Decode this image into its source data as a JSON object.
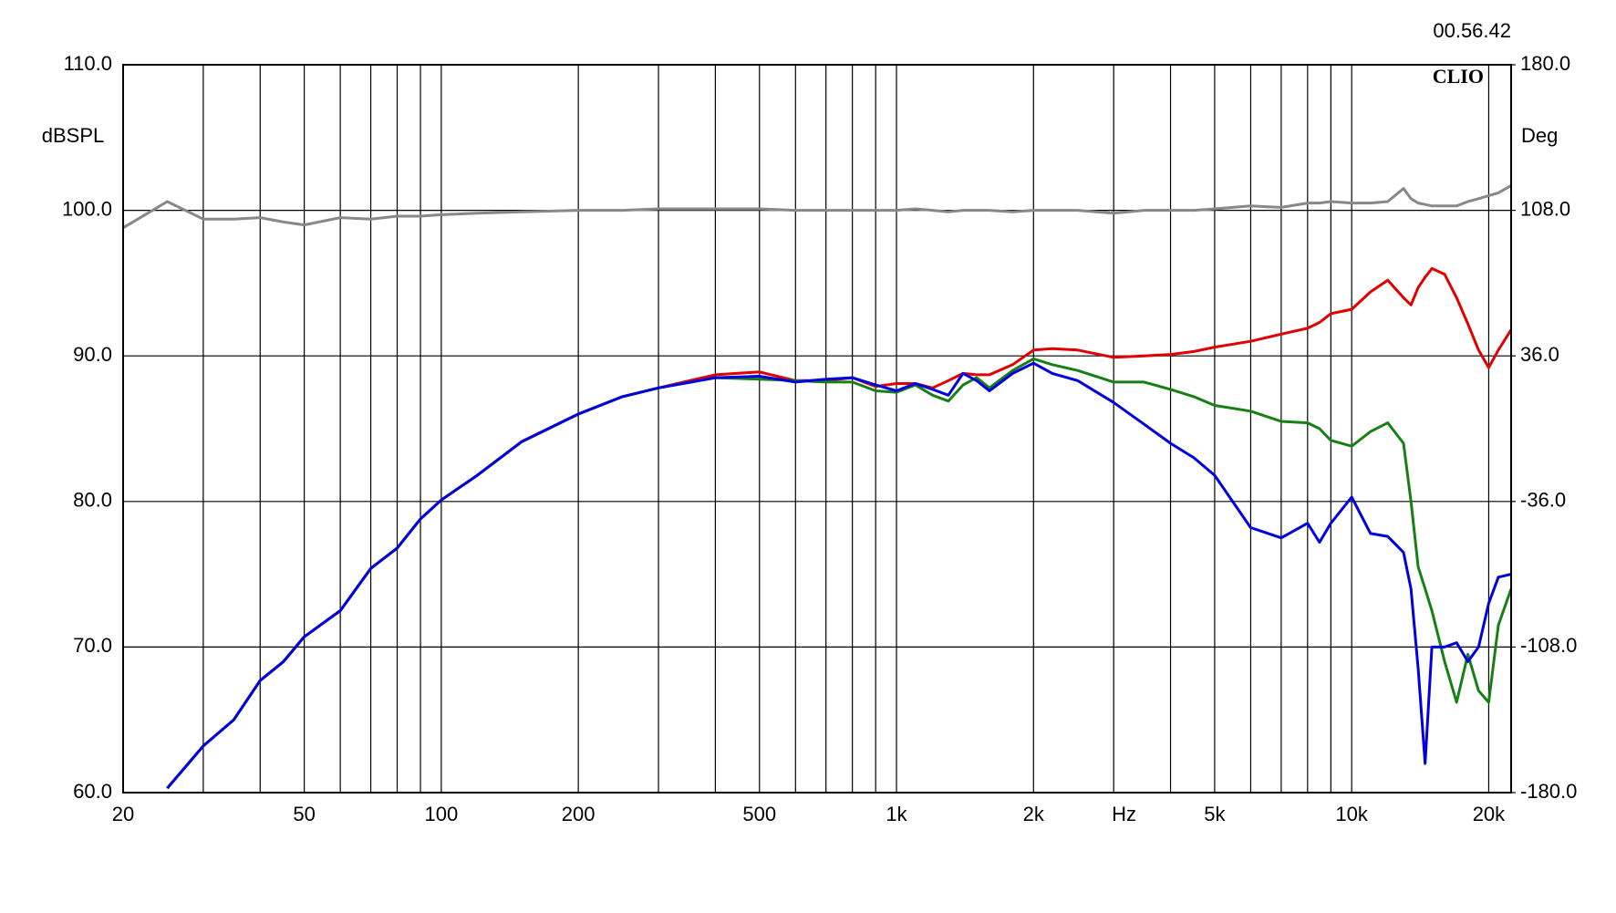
{
  "chart_data": {
    "type": "line",
    "timestamp": "00.56.42",
    "brand": "CLIO",
    "xlabel": "Hz",
    "ylabel": "dBSPL",
    "y2label": "Deg",
    "xscale": "log",
    "grid": true,
    "xlim": [
      20,
      22400
    ],
    "ylim": [
      60,
      110
    ],
    "y2lim": [
      -180,
      180
    ],
    "xticks": [
      20,
      50,
      100,
      200,
      500,
      {
        "value": 1000,
        "label": "1k"
      },
      {
        "value": 2000,
        "label": "2k"
      },
      {
        "value": 5000,
        "label": "5k"
      },
      {
        "value": 10000,
        "label": "10k"
      },
      {
        "value": 20000,
        "label": "20k"
      }
    ],
    "xminor": [
      30,
      40,
      60,
      70,
      80,
      90,
      300,
      400,
      600,
      700,
      800,
      900,
      3000,
      4000,
      6000,
      7000,
      8000,
      9000
    ],
    "yticks": [
      {
        "value": 60,
        "label": "60.0"
      },
      {
        "value": 70,
        "label": "70.0"
      },
      {
        "value": 80,
        "label": "80.0"
      },
      {
        "value": 90,
        "label": "90.0"
      },
      {
        "value": 100,
        "label": "100.0"
      },
      {
        "value": 110,
        "label": "110.0"
      }
    ],
    "y2ticks": [
      {
        "value": -180,
        "label": "-180.0"
      },
      {
        "value": -108,
        "label": "-108.0"
      },
      {
        "value": -36,
        "label": "-36.0"
      },
      {
        "value": 36,
        "label": "36.0"
      },
      {
        "value": 108,
        "label": "108.0"
      },
      {
        "value": 180,
        "label": "180.0"
      }
    ],
    "x": [
      20,
      25,
      30,
      35,
      40,
      45,
      50,
      60,
      70,
      80,
      90,
      100,
      120,
      150,
      200,
      250,
      300,
      400,
      500,
      600,
      700,
      800,
      900,
      1000,
      1100,
      1200,
      1300,
      1400,
      1500,
      1600,
      1800,
      2000,
      2200,
      2500,
      3000,
      3500,
      4000,
      4500,
      5000,
      6000,
      7000,
      8000,
      8500,
      9000,
      10000,
      11000,
      12000,
      13000,
      13500,
      14000,
      14500,
      15000,
      16000,
      17000,
      18000,
      19000,
      20000,
      21000,
      22400
    ],
    "series": [
      {
        "color": "#888888",
        "values": [
          98.8,
          100.6,
          99.4,
          99.4,
          99.5,
          99.2,
          99.0,
          99.5,
          99.4,
          99.6,
          99.6,
          99.7,
          99.8,
          99.9,
          100.0,
          100.0,
          100.1,
          100.1,
          100.1,
          100.0,
          100.0,
          100.0,
          100.0,
          100.0,
          100.1,
          100.0,
          99.9,
          100.0,
          100.0,
          100.0,
          99.9,
          100.0,
          100.0,
          100.0,
          99.8,
          100.0,
          100.0,
          100.0,
          100.1,
          100.3,
          100.2,
          100.5,
          100.5,
          100.6,
          100.5,
          100.5,
          100.6,
          101.5,
          100.8,
          100.5,
          100.4,
          100.3,
          100.3,
          100.3,
          100.6,
          100.8,
          101.0,
          101.2,
          101.7
        ]
      },
      {
        "color": "#e00000",
        "values": [
          null,
          60.3,
          63.2,
          65.0,
          67.7,
          69.0,
          70.7,
          72.5,
          75.4,
          76.8,
          78.8,
          80.1,
          81.8,
          84.1,
          86.0,
          87.2,
          87.8,
          88.7,
          88.9,
          88.3,
          88.3,
          88.5,
          87.9,
          88.1,
          88.1,
          87.8,
          88.3,
          88.8,
          88.7,
          88.7,
          89.4,
          90.4,
          90.5,
          90.4,
          89.9,
          90.0,
          90.1,
          90.3,
          90.6,
          91.0,
          91.5,
          91.9,
          92.3,
          92.9,
          93.2,
          94.4,
          95.2,
          94.0,
          93.5,
          94.7,
          95.4,
          96.0,
          95.6,
          94.0,
          92.2,
          90.4,
          89.2,
          90.4,
          91.8
        ]
      },
      {
        "color": "#168016",
        "values": [
          null,
          60.3,
          63.2,
          65.0,
          67.7,
          69.0,
          70.7,
          72.5,
          75.4,
          76.8,
          78.8,
          80.1,
          81.8,
          84.1,
          86.0,
          87.2,
          87.8,
          88.5,
          88.4,
          88.3,
          88.2,
          88.2,
          87.6,
          87.5,
          88.0,
          87.3,
          86.9,
          88.0,
          88.5,
          87.8,
          89.0,
          89.8,
          89.4,
          89.0,
          88.2,
          88.2,
          87.7,
          87.2,
          86.6,
          86.2,
          85.5,
          85.4,
          85.0,
          84.2,
          83.8,
          84.8,
          85.4,
          84.0,
          80.0,
          75.5,
          74.0,
          72.5,
          69.0,
          66.2,
          69.5,
          67.0,
          66.2,
          71.5,
          74.0
        ]
      },
      {
        "color": "#0000e0",
        "values": [
          null,
          60.3,
          63.2,
          65.0,
          67.7,
          69.0,
          70.7,
          72.5,
          75.4,
          76.8,
          78.8,
          80.1,
          81.8,
          84.1,
          86.0,
          87.2,
          87.8,
          88.5,
          88.6,
          88.2,
          88.4,
          88.5,
          88.0,
          87.6,
          88.1,
          87.7,
          87.3,
          88.8,
          88.3,
          87.6,
          88.8,
          89.5,
          88.8,
          88.3,
          86.8,
          85.3,
          84.0,
          83.0,
          81.8,
          78.2,
          77.5,
          78.5,
          77.2,
          78.5,
          80.3,
          77.8,
          77.6,
          76.5,
          74.0,
          68.5,
          62.0,
          70.0,
          70.0,
          70.3,
          69.0,
          70.0,
          73.0,
          74.8,
          75.0
        ]
      }
    ]
  }
}
